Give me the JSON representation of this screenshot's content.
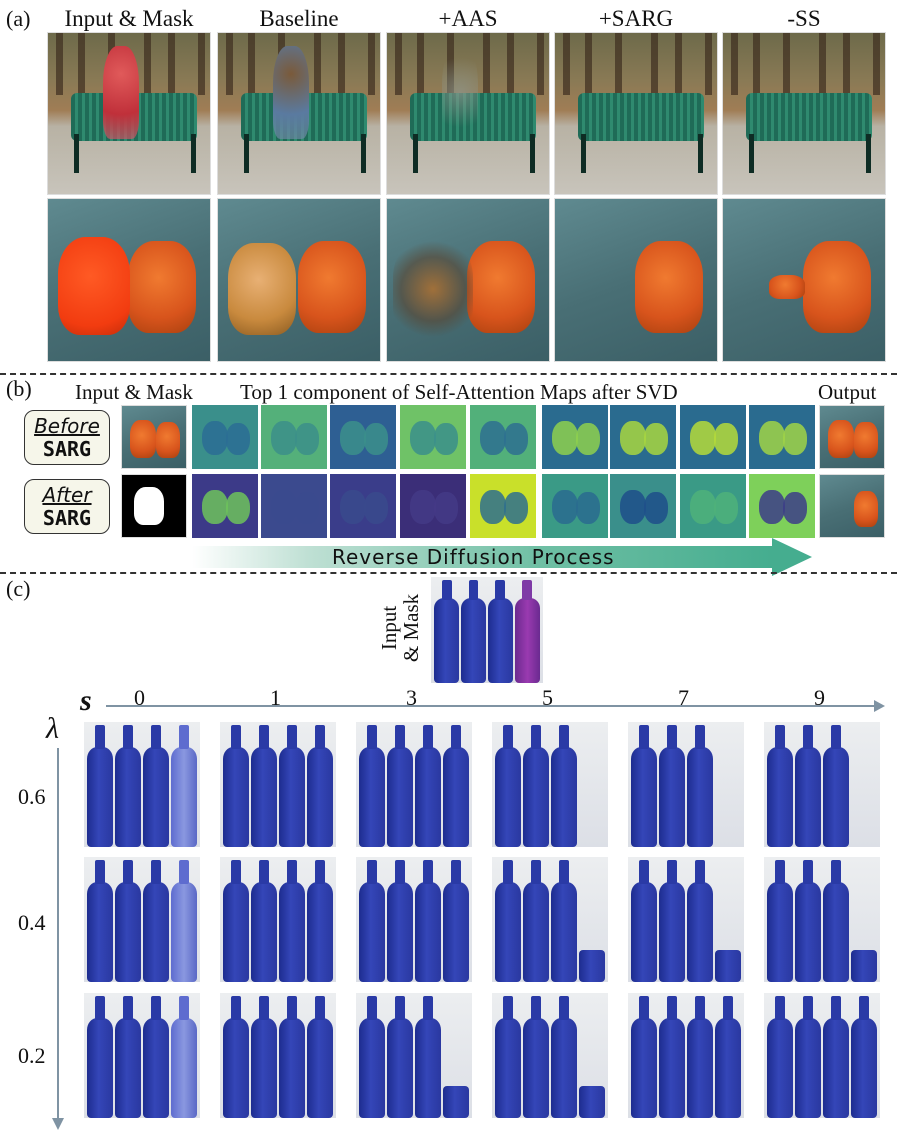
{
  "panel_a": {
    "label": "(a)",
    "columns": [
      "Input & Mask",
      "Baseline",
      "+AAS",
      "+SARG",
      "-SS"
    ]
  },
  "panel_b": {
    "label": "(b)",
    "header_input": "Input & Mask",
    "header_maps": "Top 1 component of Self-Attention Maps after SVD",
    "header_output": "Output",
    "row_before": {
      "line1": "Before",
      "line2": "SARG"
    },
    "row_after": {
      "line1": "After",
      "line2": "SARG"
    },
    "arrow_label": "Reverse Diffusion Process"
  },
  "panel_c": {
    "label": "(c)",
    "input_label_line1": "Input",
    "input_label_line2": "& Mask",
    "x_axis_symbol": "s",
    "y_axis_symbol": "λ",
    "s_values": [
      "0",
      "1",
      "3",
      "5",
      "7",
      "9"
    ],
    "lambda_values": [
      "0.6",
      "0.4",
      "0.2"
    ]
  },
  "colors": {
    "bench": "#2f8a6f",
    "glove_orange": "#d8541c",
    "bottle_blue": "#2a38a0",
    "mask_magenta": "#9a3ab0",
    "arrow_teal": "#45ad8f",
    "axis_grey": "#7f93a3"
  }
}
